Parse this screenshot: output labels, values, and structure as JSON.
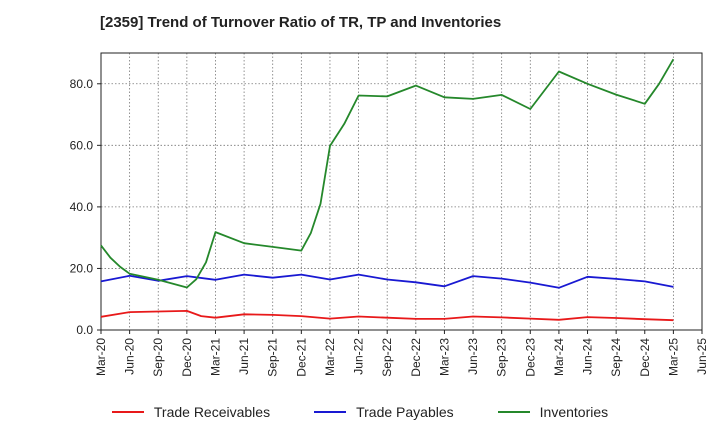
{
  "chart_data": {
    "type": "line",
    "title": "[2359]  Trend of Turnover Ratio of TR, TP and Inventories",
    "xlabel": "",
    "ylabel": "",
    "x_tick_labels": [
      "Mar-20",
      "Jun-20",
      "Sep-20",
      "Dec-20",
      "Mar-21",
      "Jun-21",
      "Sep-21",
      "Dec-21",
      "Mar-22",
      "Jun-22",
      "Sep-22",
      "Dec-22",
      "Mar-23",
      "Jun-23",
      "Sep-23",
      "Dec-23",
      "Mar-24",
      "Jun-24",
      "Sep-24",
      "Dec-24",
      "Mar-25",
      "Jun-25"
    ],
    "y_tick_labels": [
      "0.0",
      "20.0",
      "40.0",
      "60.0",
      "80.0"
    ],
    "y_ticks": [
      0,
      20,
      40,
      60,
      80
    ],
    "ylim": [
      0,
      90
    ],
    "x_count": 22,
    "grid": true,
    "legend_position": "bottom",
    "series": [
      {
        "name": "Trade Receivables",
        "color": "#e8191a",
        "points": [
          [
            0,
            4.3
          ],
          [
            1,
            5.8
          ],
          [
            2,
            6.0
          ],
          [
            3,
            6.2
          ],
          [
            3.5,
            4.5
          ],
          [
            4,
            4.0
          ],
          [
            5,
            5.1
          ],
          [
            6,
            4.9
          ],
          [
            7,
            4.5
          ],
          [
            8,
            3.7
          ],
          [
            9,
            4.4
          ],
          [
            10,
            4.0
          ],
          [
            11,
            3.6
          ],
          [
            12,
            3.6
          ],
          [
            13,
            4.4
          ],
          [
            14,
            4.1
          ],
          [
            15,
            3.7
          ],
          [
            16,
            3.3
          ],
          [
            17,
            4.2
          ],
          [
            18,
            3.9
          ],
          [
            19,
            3.5
          ],
          [
            20,
            3.2
          ]
        ]
      },
      {
        "name": "Trade Payables",
        "color": "#1919d2",
        "points": [
          [
            0,
            15.8
          ],
          [
            1,
            17.6
          ],
          [
            2,
            16.0
          ],
          [
            3,
            17.5
          ],
          [
            4,
            16.3
          ],
          [
            5,
            18.0
          ],
          [
            6,
            17.0
          ],
          [
            7,
            18.0
          ],
          [
            8,
            16.4
          ],
          [
            9,
            18.0
          ],
          [
            10,
            16.4
          ],
          [
            11,
            15.5
          ],
          [
            12,
            14.2
          ],
          [
            13,
            17.5
          ],
          [
            14,
            16.7
          ],
          [
            15,
            15.4
          ],
          [
            16,
            13.7
          ],
          [
            17,
            17.3
          ],
          [
            18,
            16.6
          ],
          [
            19,
            15.8
          ],
          [
            20,
            14.0
          ]
        ]
      },
      {
        "name": "Inventories",
        "color": "#25882b",
        "points": [
          [
            0,
            27.5
          ],
          [
            0.33,
            23.5
          ],
          [
            0.67,
            20.5
          ],
          [
            1,
            18.3
          ],
          [
            2,
            16.3
          ],
          [
            3,
            13.8
          ],
          [
            3.33,
            16.5
          ],
          [
            3.67,
            22.0
          ],
          [
            4,
            31.8
          ],
          [
            5,
            28.2
          ],
          [
            6,
            27.0
          ],
          [
            7,
            25.8
          ],
          [
            7.33,
            31.5
          ],
          [
            7.67,
            41.0
          ],
          [
            8,
            59.8
          ],
          [
            8.5,
            67.0
          ],
          [
            9,
            76.2
          ],
          [
            10,
            75.9
          ],
          [
            11,
            79.4
          ],
          [
            12,
            75.6
          ],
          [
            13,
            75.1
          ],
          [
            14,
            76.4
          ],
          [
            15,
            71.8
          ],
          [
            16,
            84.0
          ],
          [
            17,
            80.0
          ],
          [
            18,
            76.5
          ],
          [
            19,
            73.5
          ],
          [
            19.5,
            80.0
          ],
          [
            20,
            88.0
          ]
        ]
      }
    ]
  }
}
